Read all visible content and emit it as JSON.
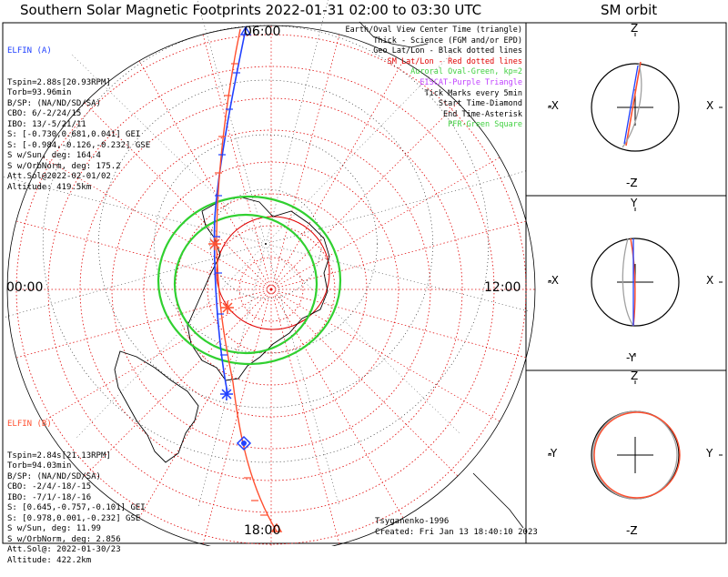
{
  "title": "Southern Solar Magnetic Footprints 2022-01-31 02:00 to 03:30 UTC",
  "orbit_title": "SM orbit",
  "map_labels": {
    "top": "06:00",
    "left": "00:00",
    "right": "12:00",
    "bottom": "18:00"
  },
  "elfin_a": {
    "name": "ELFIN (A)",
    "color": "#2040ff",
    "lines": [
      "Tspin=2.88s[20.93RPM]",
      "Torb=93.96min",
      "B/SP: (NA/ND/SD/SA)",
      "CBO: 6/-2/24/15",
      "IBO: 13/-5/21/11",
      "S: [-0.730,0.681,0.041] GEI",
      "S: [-0.984,-0.126,-0.232] GSE",
      "S w/Sun, deg: 164.4",
      "S w/OrbNorm, deg: 175.2",
      "Att.Sol@2022-02-01/02",
      "Altitude: 419.5km"
    ]
  },
  "elfin_b": {
    "name": "ELFIN (B)",
    "color": "#ff5030",
    "lines": [
      "Tspin=2.84s[21.13RPM]",
      "Torb=94.03min",
      "B/SP: (NA/ND/SD/SA)",
      "CBO: -2/4/-18/-15",
      "IBO: -7/1/-18/-16",
      "S: [0.645,-0.757,-0.101] GEI",
      "S: [0.978,0.001,-0.232] GSE",
      "S w/Sun, deg: 11.99",
      "S w/OrbNorm, deg: 2.856",
      "Att.Sol@: 2022-01-30/23",
      "Altitude: 422.2km"
    ]
  },
  "legend": [
    {
      "text": "Earth/Oval View Center Time (triangle)",
      "color": "#000000"
    },
    {
      "text": "Thick - Science (FGM and/or EPD)",
      "color": "#000000"
    },
    {
      "text": "Geo Lat/Lon - Black dotted lines",
      "color": "#000000"
    },
    {
      "text": "SM Lat/Lon - Red dotted lines",
      "color": "#e00000"
    },
    {
      "text": "Auroral Oval-Green, kp=2",
      "color": "#40d040"
    },
    {
      "text": "EISCAT-Purple Triangle",
      "color": "#c040ff"
    },
    {
      "text": "Tick Marks every 5min",
      "color": "#000000"
    },
    {
      "text": "Start Time-Diamond",
      "color": "#000000"
    },
    {
      "text": "End Time-Asterisk",
      "color": "#000000"
    },
    {
      "text": "PFR-Green Square",
      "color": "#40d040"
    }
  ],
  "credits": {
    "author": "Tsyganenko-1996",
    "created": "Created: Fri Jan 13 18:40:10 2023"
  },
  "orbit_panels": [
    {
      "top": "Z",
      "bottom": "-Z",
      "left": "-X",
      "right": "X"
    },
    {
      "top": "Y",
      "bottom": "-Y",
      "left": "-X",
      "right": "X"
    },
    {
      "top": "Z",
      "bottom": "-Z",
      "left": "-Y",
      "right": "Y"
    }
  ],
  "colors": {
    "blue": "#2040ff",
    "red": "#ff5030",
    "green": "#30d030",
    "gray": "#a0a0a0"
  }
}
